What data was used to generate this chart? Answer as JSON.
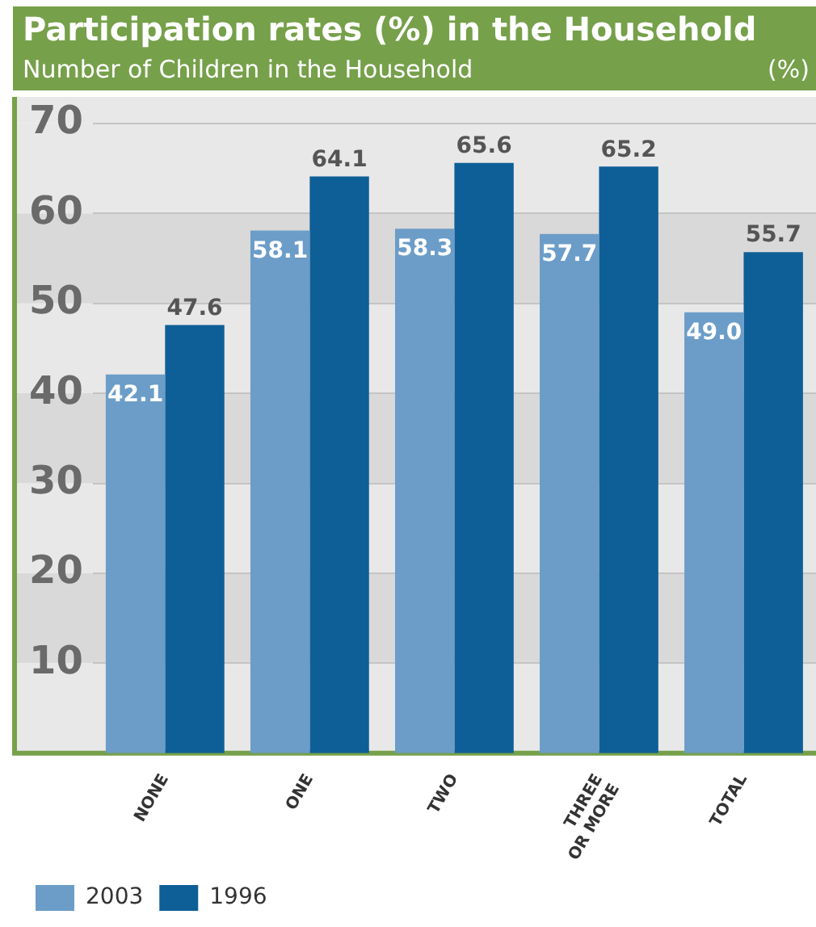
{
  "chart_data": {
    "type": "bar",
    "title": "Participation rates (%) in the Household",
    "subtitle": "Number of Children in the Household",
    "ylabel": "(%)",
    "categories": [
      "NONE",
      "ONE",
      "TWO",
      "THREE OR MORE",
      "TOTAL"
    ],
    "series": [
      {
        "name": "2003",
        "color": "#6b9dc8",
        "values": [
          42.1,
          58.1,
          58.3,
          57.7,
          49.0
        ],
        "value_labels": [
          "42.1",
          "58.1",
          "58.3",
          "57.7",
          "49.0"
        ]
      },
      {
        "name": "1996",
        "color": "#0e5f97",
        "values": [
          47.6,
          64.1,
          65.6,
          65.2,
          55.7
        ],
        "value_labels": [
          "47.6",
          "64.1",
          "65.6",
          "65.2",
          "55.7"
        ]
      }
    ],
    "ylim": [
      0,
      70
    ],
    "yticks": [
      10,
      20,
      30,
      40,
      50,
      60,
      70
    ],
    "grid": "y",
    "legend": "bottom left"
  }
}
